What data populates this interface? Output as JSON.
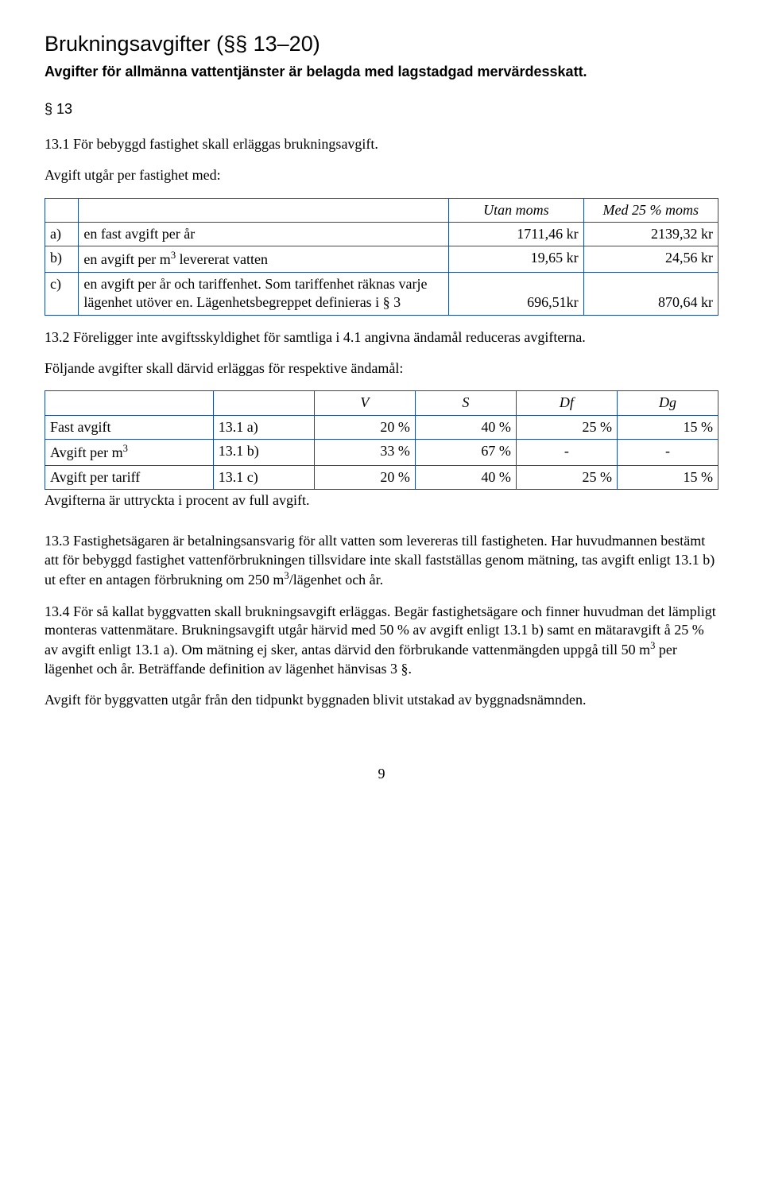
{
  "title": "Brukningsavgifter (§§ 13–20)",
  "subtitle": "Avgifter för allmänna vattentjänster är belagda med lagstadgad mervärdesskatt.",
  "sec13": "§ 13",
  "p_13_1": "13.1  För bebyggd fastighet skall erläggas brukningsavgift.",
  "p_13_intro": "Avgift utgår per fastighet med:",
  "table1": {
    "border_color": "#1a4aa8",
    "h_utan": "Utan moms",
    "h_med": "Med 25 % moms",
    "row_a": {
      "lbl": "a)",
      "text": "en fast avgift per år",
      "c1": "1711,46 kr",
      "c2": "2139,32 kr"
    },
    "row_b": {
      "lbl": "b)",
      "text_html": "en avgift per m<span class=\"sup\">3</span> levererat vatten",
      "c1": "19,65 kr",
      "c2": "24,56 kr"
    },
    "row_c": {
      "lbl": "c)",
      "text": "en avgift per år och tariffenhet. Som tariffenhet räknas varje lägenhet utöver en. Lägenhetsbegreppet definieras i § 3",
      "c1": "696,51kr",
      "c2": "870,64 kr"
    }
  },
  "p_13_2": "13.2  Föreligger inte avgiftsskyldighet för samtliga i 4.1 angivna ändamål reduceras avgifterna.",
  "p_foljande": "Följande avgifter skall därvid erläggas för respektive ändamål:",
  "table2": {
    "h_V": "V",
    "h_S": "S",
    "h_Df": "Df",
    "h_Dg": "Dg",
    "rows": [
      {
        "label": "Fast avgift",
        "ref": "13.1 a)",
        "v": "20 %",
        "s": "40 %",
        "df": "25 %",
        "dg": "15 %"
      },
      {
        "label_html": "Avgift per m<span class=\"sup\">3</span>",
        "ref": "13.1 b)",
        "v": "33 %",
        "s": "67 %",
        "df": "-",
        "dg": "-"
      },
      {
        "label": "Avgift per tariff",
        "ref": "13.1 c)",
        "v": "20 %",
        "s": "40 %",
        "df": "25 %",
        "dg": "15 %"
      }
    ]
  },
  "p_percent": "Avgifterna är uttryckta i procent av full avgift.",
  "p_13_3_html": "13.3  Fastighetsägaren är betalningsansvarig för allt vatten som levereras till fastigheten. Har huvudmannen bestämt att för bebyggd fastighet vattenförbrukningen tillsvidare inte skall fastställas genom mätning, tas avgift enligt 13.1 b) ut efter en antagen förbrukning om 250 m<span class=\"sup\">3</span>/lägenhet och år.",
  "p_13_4_html": "13.4  För så kallat byggvatten skall brukningsavgift erläggas. Begär fastighetsägare och finner huvudman det lämpligt monteras vattenmätare. Brukningsavgift utgår härvid med 50 % av avgift enligt 13.1 b) samt en mätaravgift å 25 % av avgift enligt 13.1 a). Om mätning ej sker, antas därvid den förbrukande vattenmängden uppgå till 50 m<span class=\"sup\">3</span> per lägenhet och år. Beträffande definition av lägenhet hänvisas 3 §.",
  "p_byggvatten": "Avgift för byggvatten utgår från den tidpunkt byggnaden blivit utstakad av byggnadsnämnden.",
  "page_number": "9"
}
